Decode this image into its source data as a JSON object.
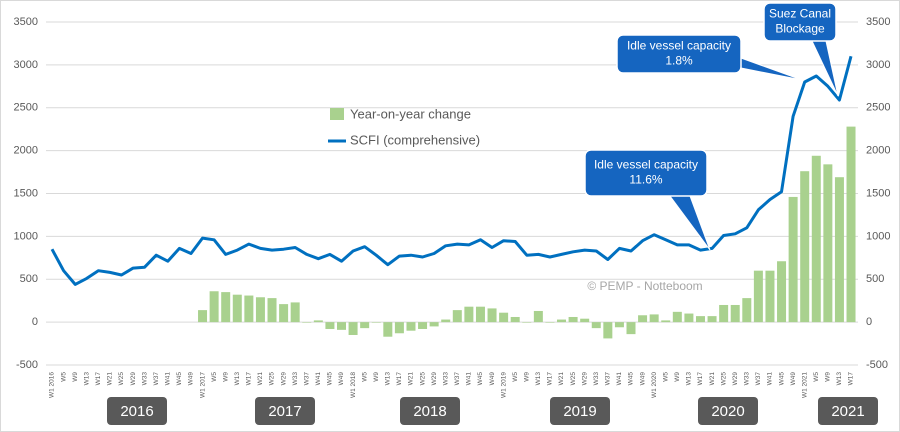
{
  "chart_data": {
    "type": "bar_line",
    "categories": [
      "W1 2016",
      "W5",
      "W9",
      "W13",
      "W17",
      "W21",
      "W25",
      "W29",
      "W33",
      "W37",
      "W41",
      "W45",
      "W49",
      "W1 2017",
      "W5",
      "W9",
      "W13",
      "W17",
      "W21",
      "W25",
      "W29",
      "W33",
      "W37",
      "W41",
      "W45",
      "W49",
      "W1 2018",
      "W5",
      "W9",
      "W13",
      "W17",
      "W21",
      "W25",
      "W29",
      "W33",
      "W37",
      "W41",
      "W45",
      "W49",
      "W1 2019",
      "W5",
      "W9",
      "W13",
      "W17",
      "W21",
      "W25",
      "W29",
      "W33",
      "W37",
      "W41",
      "W45",
      "W49",
      "W1 2020",
      "W5",
      "W9",
      "W13",
      "W17",
      "W21",
      "W25",
      "W29",
      "W33",
      "W37",
      "W41",
      "W45",
      "W49",
      "W1 2021",
      "W5",
      "W9",
      "W13",
      "W17"
    ],
    "series": [
      {
        "name": "Year-on-year change",
        "color": "#a9d18e",
        "kind": "bar",
        "values": [
          null,
          null,
          null,
          null,
          null,
          null,
          null,
          null,
          null,
          null,
          null,
          null,
          null,
          140,
          360,
          350,
          320,
          310,
          290,
          280,
          210,
          230,
          0,
          20,
          -80,
          -90,
          -150,
          -70,
          0,
          -170,
          -130,
          -100,
          -80,
          -50,
          30,
          140,
          180,
          180,
          160,
          110,
          60,
          0,
          130,
          0,
          30,
          60,
          40,
          -70,
          -190,
          -60,
          -140,
          80,
          90,
          20,
          120,
          100,
          70,
          70,
          200,
          200,
          280,
          600,
          600,
          710,
          1460,
          1760,
          1940,
          1840,
          1690,
          2280
        ]
      },
      {
        "name": "SCFI (comprehensive)",
        "color": "#0070c0",
        "kind": "line",
        "axis": "y2",
        "values": [
          850,
          600,
          440,
          510,
          600,
          580,
          550,
          630,
          640,
          780,
          710,
          860,
          800,
          980,
          960,
          790,
          840,
          910,
          860,
          840,
          850,
          870,
          790,
          740,
          790,
          710,
          830,
          880,
          780,
          670,
          770,
          780,
          760,
          800,
          890,
          910,
          900,
          960,
          870,
          950,
          940,
          780,
          790,
          760,
          790,
          820,
          840,
          830,
          730,
          860,
          830,
          950,
          1020,
          960,
          900,
          900,
          840,
          860,
          1010,
          1030,
          1100,
          1310,
          1430,
          1520,
          2400,
          2800,
          2870,
          2750,
          2590,
          3100
        ]
      }
    ],
    "ylim": [
      -500,
      3500
    ],
    "yticks": [
      -500,
      0,
      500,
      1000,
      1500,
      2000,
      2500,
      3000,
      3500
    ],
    "y2lim": [
      -500,
      3500
    ],
    "y2ticks": [
      -500,
      0,
      500,
      1000,
      1500,
      2000,
      2500,
      3000,
      3500
    ],
    "grid": true,
    "years": [
      "2016",
      "2017",
      "2018",
      "2019",
      "2020",
      "2021"
    ],
    "annotations": [
      {
        "lines": [
          "Idle vessel capacity",
          "11.6%"
        ]
      },
      {
        "lines": [
          "Idle vessel capacity",
          "1.8%"
        ]
      },
      {
        "lines": [
          "Suez Canal",
          "Blockage"
        ]
      }
    ],
    "watermark": "© PEMP - Notteboom"
  }
}
